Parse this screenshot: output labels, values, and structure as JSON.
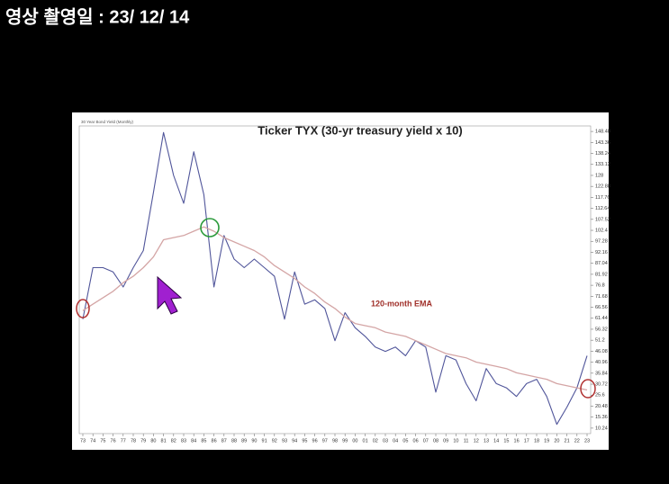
{
  "header": "영상 촬영일 : 23/ 12/ 14",
  "chart_data": {
    "type": "line",
    "title": "Ticker TYX (30-yr treasury yield x 10)",
    "subtitle": "30 Year Bond Yield (Monthly)",
    "categories": [
      "73",
      "74",
      "75",
      "76",
      "77",
      "78",
      "79",
      "80",
      "81",
      "82",
      "83",
      "84",
      "85",
      "86",
      "87",
      "88",
      "89",
      "90",
      "91",
      "92",
      "93",
      "94",
      "95",
      "96",
      "97",
      "98",
      "99",
      "00",
      "01",
      "02",
      "03",
      "04",
      "05",
      "06",
      "07",
      "08",
      "09",
      "10",
      "11",
      "12",
      "13",
      "14",
      "15",
      "16",
      "17",
      "18",
      "19",
      "20",
      "21",
      "22",
      "23"
    ],
    "series": [
      {
        "color": "#50559a",
        "values": [
          61,
          85,
          85,
          83,
          76,
          85,
          93,
          120,
          148,
          128,
          115,
          139,
          119,
          76,
          100,
          89,
          85,
          89,
          85,
          81,
          61,
          83,
          68,
          70,
          66,
          51,
          64,
          57,
          53,
          48,
          46,
          48,
          44,
          51,
          48,
          27,
          44,
          42,
          31,
          23,
          38,
          31,
          29,
          25,
          31,
          33,
          25,
          12,
          20,
          29,
          44
        ]
      },
      {
        "name": "120-month EMA",
        "color": "#d4a5a5",
        "values": [
          65,
          68,
          71,
          74,
          78,
          81,
          85,
          90,
          98,
          99,
          100,
          102,
          104,
          102,
          99,
          97,
          95,
          93,
          90,
          86,
          83,
          80,
          76,
          73,
          69,
          66,
          62,
          59,
          58,
          57,
          55,
          54,
          53,
          51,
          49,
          47,
          45,
          44,
          43,
          41,
          40,
          39,
          38,
          36,
          35,
          34,
          33,
          31,
          30,
          29,
          28
        ]
      }
    ],
    "ylim": [
      7.68,
      151.04
    ],
    "yticks": [
      148.48,
      143.36,
      138.24,
      133.12,
      128,
      122.88,
      117.76,
      112.64,
      107.52,
      102.4,
      97.28,
      92.16,
      87.04,
      81.92,
      76.8,
      71.68,
      66.56,
      61.44,
      56.32,
      51.2,
      46.08,
      40.96,
      35.84,
      30.72,
      25.6,
      20.48,
      15.36,
      10.24
    ],
    "grid": false
  }
}
